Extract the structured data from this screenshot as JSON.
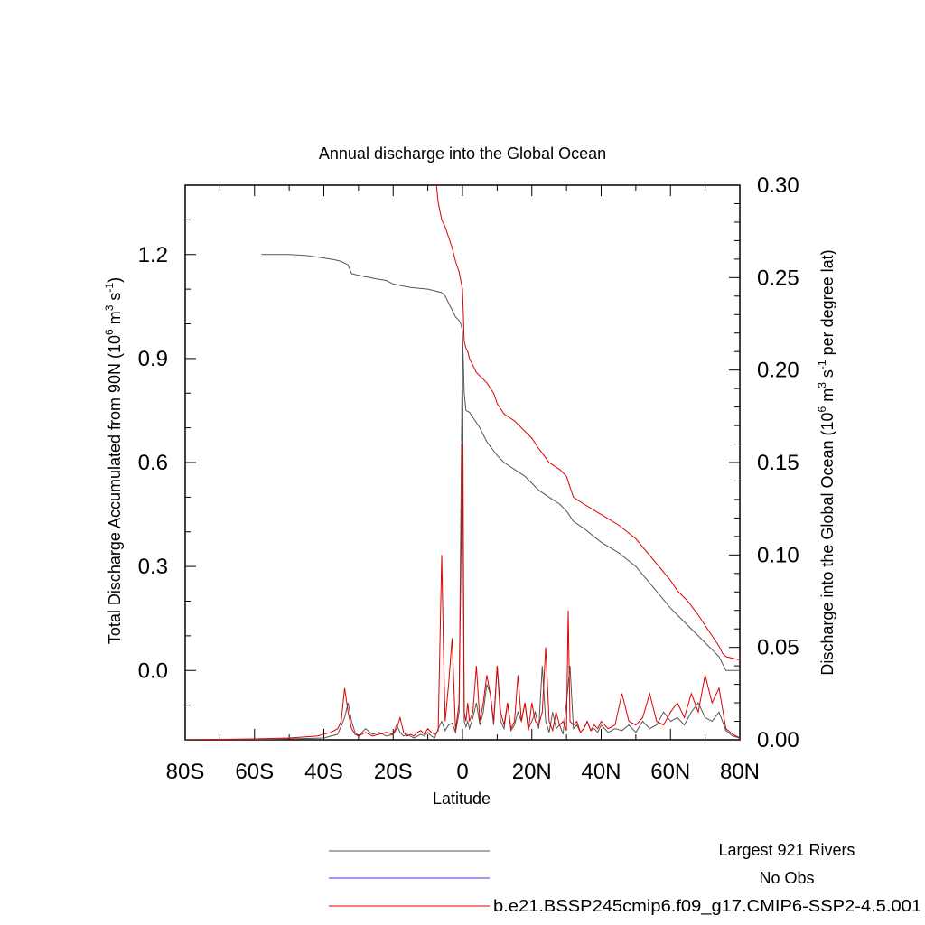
{
  "chart_data": {
    "type": "line",
    "title": "Annual discharge into the Global Ocean",
    "xlabel": "Latitude",
    "ylabel_left_main": "Total Discharge Accumulated from 90N (10",
    "ylabel_left_sup1": "6",
    "ylabel_left_mid": " m",
    "ylabel_left_sup2": "3",
    "ylabel_left_mid2": " s",
    "ylabel_left_sup3": "-1",
    "ylabel_left_end": ")",
    "ylabel_right_main": "Discharge into the Global Ocean (10",
    "ylabel_right_sup1": "6",
    "ylabel_right_mid": " m",
    "ylabel_right_sup2": "3",
    "ylabel_right_mid2": " s",
    "ylabel_right_sup3": "-1",
    "ylabel_right_end": " per degree lat)",
    "xlim": [
      -80,
      80
    ],
    "ylim_left": [
      -0.2,
      1.4
    ],
    "ylim_right": [
      0,
      0.3
    ],
    "x_ticks": [
      {
        "value": -80,
        "label": "80S"
      },
      {
        "value": -60,
        "label": "60S"
      },
      {
        "value": -40,
        "label": "40S"
      },
      {
        "value": -20,
        "label": "20S"
      },
      {
        "value": 0,
        "label": "0"
      },
      {
        "value": 20,
        "label": "20N"
      },
      {
        "value": 40,
        "label": "40N"
      },
      {
        "value": 60,
        "label": "60N"
      },
      {
        "value": 80,
        "label": "80N"
      }
    ],
    "y_ticks_left": [
      {
        "value": 0.0,
        "label": "0.0"
      },
      {
        "value": 0.3,
        "label": "0.3"
      },
      {
        "value": 0.6,
        "label": "0.6"
      },
      {
        "value": 0.9,
        "label": "0.9"
      },
      {
        "value": 1.2,
        "label": "1.2"
      }
    ],
    "y_ticks_right": [
      {
        "value": 0.0,
        "label": "0.00"
      },
      {
        "value": 0.05,
        "label": "0.05"
      },
      {
        "value": 0.1,
        "label": "0.10"
      },
      {
        "value": 0.15,
        "label": "0.15"
      },
      {
        "value": 0.2,
        "label": "0.20"
      },
      {
        "value": 0.25,
        "label": "0.25"
      },
      {
        "value": 0.3,
        "label": "0.30"
      }
    ],
    "series": [
      {
        "name": "Largest 921 Rivers",
        "color": "#555555",
        "axis": "left",
        "x": [
          -58,
          -50,
          -45,
          -40,
          -37,
          -35,
          -33,
          -32,
          -30,
          -25,
          -22,
          -20,
          -15,
          -10,
          -8,
          -6,
          -5,
          -4,
          -3,
          -2,
          -1,
          -0.5,
          0,
          0.5,
          1,
          2,
          3,
          5,
          7,
          10,
          12,
          15,
          18,
          20,
          22,
          25,
          28,
          30,
          32,
          35,
          40,
          45,
          50,
          55,
          60,
          62,
          65,
          68,
          70,
          72,
          74,
          75,
          76,
          80
        ],
        "values": [
          1.2,
          1.2,
          1.197,
          1.19,
          1.185,
          1.18,
          1.17,
          1.145,
          1.14,
          1.13,
          1.125,
          1.115,
          1.105,
          1.1,
          1.095,
          1.09,
          1.08,
          1.06,
          1.04,
          1.02,
          1.01,
          1.0,
          0.98,
          0.8,
          0.75,
          0.745,
          0.73,
          0.7,
          0.66,
          0.62,
          0.6,
          0.58,
          0.56,
          0.54,
          0.52,
          0.5,
          0.48,
          0.46,
          0.43,
          0.41,
          0.37,
          0.34,
          0.3,
          0.24,
          0.18,
          0.16,
          0.13,
          0.1,
          0.08,
          0.06,
          0.04,
          0.02,
          0.0,
          0.0
        ]
      },
      {
        "name": "No Obs",
        "color": "#3333ff",
        "axis": "left",
        "x": [],
        "values": []
      },
      {
        "name": "b.e21.BSSP245cmip6.f09_g17.CMIP6-SSP2-4.5.001",
        "color": "#dd0000",
        "axis": "left",
        "x": [
          -7.5,
          -7,
          -6,
          -5,
          -4,
          -3,
          -2,
          -1,
          0,
          0.5,
          1,
          1.5,
          2,
          3,
          4,
          5,
          7,
          9,
          10,
          12,
          15,
          18,
          20,
          22,
          25,
          28,
          30,
          32,
          35,
          40,
          45,
          50,
          55,
          60,
          62,
          65,
          68,
          70,
          72,
          74,
          75,
          76,
          80
        ],
        "values": [
          1.4,
          1.35,
          1.3,
          1.28,
          1.25,
          1.22,
          1.18,
          1.15,
          1.1,
          0.95,
          0.93,
          0.92,
          0.9,
          0.88,
          0.86,
          0.85,
          0.83,
          0.8,
          0.77,
          0.74,
          0.72,
          0.69,
          0.67,
          0.64,
          0.6,
          0.58,
          0.56,
          0.5,
          0.48,
          0.45,
          0.42,
          0.38,
          0.32,
          0.26,
          0.23,
          0.2,
          0.16,
          0.13,
          0.1,
          0.07,
          0.05,
          0.04,
          0.03
        ]
      }
    ],
    "per_degree_series": [
      {
        "name": "Largest 921 Rivers",
        "color": "#555555",
        "axis": "right",
        "x": [
          -80,
          -60,
          -50,
          -40,
          -36,
          -34,
          -33,
          -32,
          -31,
          -30,
          -28,
          -26,
          -24,
          -22,
          -20,
          -19,
          -18,
          -17,
          -16,
          -15,
          -14,
          -13,
          -12,
          -11,
          -10,
          -9,
          -8,
          -7,
          -6,
          -5,
          -4,
          -3,
          -2,
          -1,
          0,
          0.5,
          1,
          1.5,
          2,
          3,
          4,
          5,
          6,
          7,
          8,
          9,
          10,
          11,
          12,
          13,
          14,
          15,
          16,
          17,
          18,
          19,
          20,
          21,
          22,
          23,
          24,
          25,
          26,
          27,
          28,
          29,
          30,
          31,
          32,
          33,
          34,
          35,
          36,
          37,
          38,
          39,
          40,
          42,
          44,
          46,
          48,
          50,
          52,
          54,
          56,
          58,
          60,
          62,
          64,
          66,
          68,
          70,
          72,
          74,
          76,
          78,
          80
        ],
        "values": [
          0,
          0,
          0.0005,
          0.001,
          0.003,
          0.012,
          0.02,
          0.01,
          0.004,
          0.002,
          0.006,
          0.003,
          0.004,
          0.002,
          0.003,
          0.008,
          0.004,
          0.002,
          0.003,
          0.002,
          0.001,
          0.002,
          0.003,
          0.002,
          0.004,
          0.002,
          0.001,
          0.006,
          0.01,
          0.005,
          0.008,
          0.009,
          0.004,
          0.015,
          0.22,
          0.01,
          0.007,
          0.01,
          0.006,
          0.012,
          0.02,
          0.008,
          0.015,
          0.03,
          0.025,
          0.008,
          0.04,
          0.01,
          0.006,
          0.02,
          0.005,
          0.008,
          0.015,
          0.01,
          0.02,
          0.006,
          0.01,
          0.015,
          0.006,
          0.04,
          0.01,
          0.004,
          0.015,
          0.006,
          0.008,
          0.003,
          0.02,
          0.04,
          0.006,
          0.008,
          0.004,
          0.006,
          0.01,
          0.005,
          0.006,
          0.004,
          0.008,
          0.004,
          0.006,
          0.005,
          0.008,
          0.004,
          0.01,
          0.006,
          0.008,
          0.015,
          0.01,
          0.012,
          0.008,
          0.015,
          0.02,
          0.012,
          0.01,
          0.015,
          0.005,
          0.002,
          0.001
        ]
      },
      {
        "name": "b.e21.BSSP245cmip6.f09_g17.CMIP6-SSP2-4.5.001",
        "color": "#dd0000",
        "axis": "right",
        "x": [
          -80,
          -60,
          -50,
          -42,
          -38,
          -36,
          -35,
          -34,
          -33,
          -32,
          -31,
          -30,
          -28,
          -26,
          -24,
          -22,
          -20,
          -19,
          -18,
          -17,
          -16,
          -15,
          -14,
          -13,
          -12,
          -11,
          -10,
          -9,
          -8,
          -7,
          -6,
          -5.5,
          -5,
          -4,
          -3,
          -2,
          -1,
          0,
          0.5,
          1,
          1.5,
          2,
          3,
          4,
          5,
          6,
          7,
          8,
          9,
          10,
          11,
          12,
          13,
          14,
          15,
          16,
          17,
          18,
          19,
          20,
          21,
          22,
          23,
          24,
          25,
          26,
          27,
          28,
          29,
          30,
          30.5,
          31,
          32,
          33,
          34,
          35,
          36,
          37,
          38,
          39,
          40,
          42,
          44,
          46,
          48,
          50,
          52,
          54,
          56,
          58,
          60,
          62,
          64,
          66,
          68,
          70,
          72,
          74,
          76,
          78,
          80
        ],
        "values": [
          0,
          0.0005,
          0.001,
          0.002,
          0.004,
          0.006,
          0.01,
          0.028,
          0.015,
          0.006,
          0.003,
          0.002,
          0.004,
          0.002,
          0.003,
          0.004,
          0.003,
          0.006,
          0.012,
          0.004,
          0.002,
          0.003,
          0.002,
          0.004,
          0.005,
          0.003,
          0.006,
          0.004,
          0.003,
          0.005,
          0.1,
          0.05,
          0.01,
          0.03,
          0.055,
          0.005,
          0.02,
          0.16,
          0.015,
          0.01,
          0.02,
          0.01,
          0.015,
          0.04,
          0.01,
          0.02,
          0.035,
          0.025,
          0.01,
          0.04,
          0.015,
          0.008,
          0.02,
          0.006,
          0.01,
          0.035,
          0.01,
          0.02,
          0.005,
          0.02,
          0.01,
          0.008,
          0.015,
          0.05,
          0.01,
          0.005,
          0.015,
          0.008,
          0.01,
          0.005,
          0.07,
          0.01,
          0.008,
          0.01,
          0.004,
          0.006,
          0.01,
          0.005,
          0.008,
          0.006,
          0.01,
          0.006,
          0.008,
          0.025,
          0.01,
          0.008,
          0.012,
          0.025,
          0.01,
          0.008,
          0.015,
          0.02,
          0.012,
          0.025,
          0.015,
          0.035,
          0.02,
          0.028,
          0.006,
          0.003,
          0.001
        ]
      }
    ],
    "legend": {
      "placement": "bottom",
      "entries": [
        {
          "label": "Largest 921 Rivers",
          "color": "#555555"
        },
        {
          "label": "No Obs",
          "color": "#3333ff"
        },
        {
          "label": "b.e21.BSSP245cmip6.f09_g17.CMIP6-SSP2-4.5.001",
          "color": "#dd0000"
        }
      ]
    },
    "grid": false
  }
}
